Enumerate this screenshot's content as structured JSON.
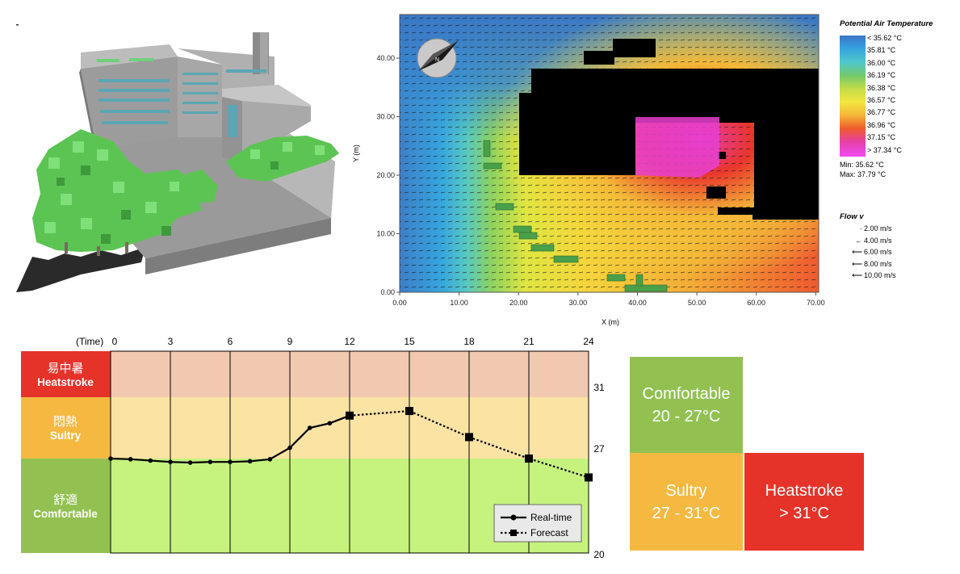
{
  "map": {
    "legend_title": "Potential Air Temperature",
    "legend_temps": [
      "< 35.62 °C",
      "35.81  °C",
      "36.00  °C",
      "36.19  °C",
      "36.38  °C",
      "36.57  °C",
      "36.77  °C",
      "36.96  °C",
      "37.15  °C",
      "> 37.34 °C"
    ],
    "legend_colors": [
      "#3878c8",
      "#35a6e0",
      "#4fc8cc",
      "#6cc66b",
      "#b8d84a",
      "#f3e840",
      "#f6b937",
      "#f0592e",
      "#e838a0",
      "#f04cf0"
    ],
    "min_text": "Min: 35.62 °C",
    "max_text": "Max: 37.79 °C",
    "flow_title": "Flow v",
    "flow_rows": [
      "2.00 m/s",
      "4.00 m/s",
      "6.00 m/s",
      "8.00 m/s",
      "10.00 m/s"
    ],
    "compass_label": "N",
    "x_axis_label": "X (m)",
    "y_axis_label": "Y (m)",
    "x_ticks": [
      "0.00",
      "10.00",
      "20.00",
      "30.00",
      "40.00",
      "50.00",
      "60.00",
      "70.00"
    ],
    "y_ticks": [
      "0.00",
      "10.00",
      "20.00",
      "30.00",
      "40.00"
    ]
  },
  "chart_data": {
    "type": "line",
    "x_header": "(Time)",
    "x_ticks": [
      "0",
      "3",
      "6",
      "9",
      "12",
      "15",
      "18",
      "21",
      "24"
    ],
    "y_ticks": [
      "31",
      "27",
      "20"
    ],
    "bands": [
      {
        "zh": "易中暑",
        "en": "Heatstroke",
        "color": "#e5332a",
        "fill": "#f1c9b0"
      },
      {
        "zh": "悶熱",
        "en": "Sultry",
        "color": "#f5b941",
        "fill": "#fae3a3"
      },
      {
        "zh": "舒適",
        "en": "Comfortable",
        "color": "#92c152",
        "fill": "#c6f27e"
      }
    ],
    "series": [
      {
        "name": "Real-time",
        "x": [
          0,
          1,
          2,
          3,
          4,
          5,
          6,
          7,
          8,
          9,
          10,
          11,
          12
        ],
        "y": [
          27.0,
          26.95,
          26.85,
          26.75,
          26.7,
          26.75,
          26.75,
          26.8,
          26.95,
          27.7,
          29.0,
          29.3,
          29.8
        ]
      },
      {
        "name": "Forecast",
        "x": [
          12,
          15,
          18,
          21,
          24
        ],
        "y": [
          29.8,
          30.1,
          28.4,
          27.0,
          25.6
        ]
      }
    ]
  },
  "categories": {
    "comfortable": {
      "name": "Comfortable",
      "range": "20 - 27°C"
    },
    "sultry": {
      "name": "Sultry",
      "range": "27 - 31°C"
    },
    "heatstroke": {
      "name": "Heatstroke",
      "range": "> 31°C"
    }
  }
}
